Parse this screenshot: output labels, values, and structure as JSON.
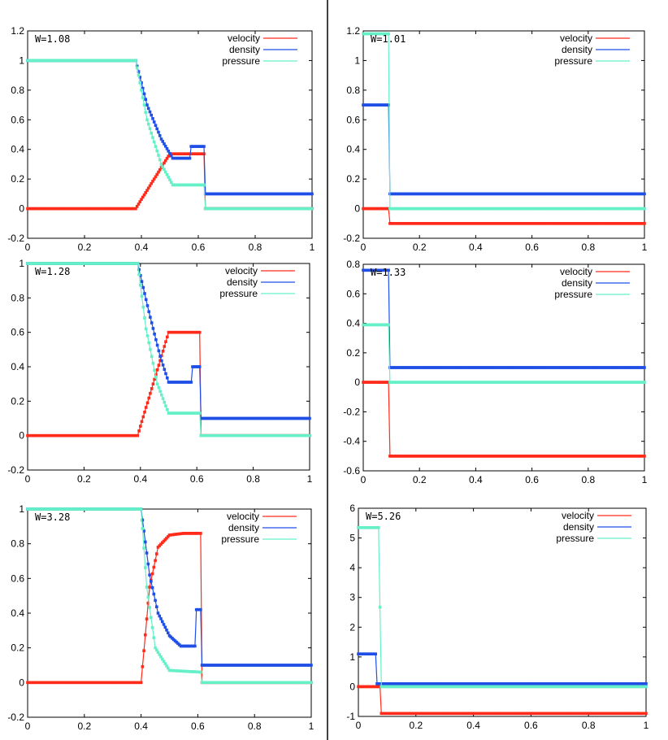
{
  "legend_labels": [
    "velocity",
    "density",
    "pressure"
  ],
  "colors": {
    "velocity": "#ff2a1a",
    "density": "#1f4fe6",
    "pressure": "#66f0c8",
    "frame": "#000000",
    "divider": "#000000"
  },
  "chart_data": [
    {
      "type": "line",
      "title": "W=1.08",
      "xlim": [
        0,
        1
      ],
      "ylim": [
        -0.2,
        1.2
      ],
      "xticks": [
        0,
        0.2,
        0.4,
        0.6,
        0.8,
        1
      ],
      "xtick_labels": [
        "0",
        "0.2",
        "0.4",
        "0.6",
        "0.8",
        "1"
      ],
      "yticks": [
        -0.2,
        0,
        0.2,
        0.4,
        0.6,
        0.8,
        1,
        1.2
      ],
      "ytick_labels": [
        "-0.2",
        "0",
        "0.2",
        "0.4",
        "0.6",
        "0.8",
        "1",
        "1.2"
      ],
      "series": [
        {
          "name": "velocity",
          "x": [
            0,
            0.38,
            0.5,
            0.62,
            0.625,
            1
          ],
          "values": [
            0,
            0,
            0.37,
            0.37,
            0,
            0
          ]
        },
        {
          "name": "density",
          "x": [
            0,
            0.38,
            0.42,
            0.47,
            0.51,
            0.57,
            0.575,
            0.62,
            0.625,
            1
          ],
          "values": [
            1,
            1,
            0.7,
            0.47,
            0.34,
            0.34,
            0.42,
            0.42,
            0.1,
            0.1
          ]
        },
        {
          "name": "pressure",
          "x": [
            0,
            0.38,
            0.42,
            0.47,
            0.51,
            0.62,
            0.625,
            1
          ],
          "values": [
            1,
            1,
            0.6,
            0.3,
            0.16,
            0.16,
            0,
            0
          ]
        }
      ]
    },
    {
      "type": "line",
      "title": "W=1.01",
      "xlim": [
        0,
        1
      ],
      "ylim": [
        -0.2,
        1.2
      ],
      "xticks": [
        0,
        0.2,
        0.4,
        0.6,
        0.8,
        1
      ],
      "xtick_labels": [
        "0",
        "0.2",
        "0.4",
        "0.6",
        "0.8",
        "1"
      ],
      "yticks": [
        -0.2,
        0,
        0.2,
        0.4,
        0.6,
        0.8,
        1,
        1.2
      ],
      "ytick_labels": [
        "-0.2",
        "0",
        "0.2",
        "0.4",
        "0.6",
        "0.8",
        "1",
        "1.2"
      ],
      "series": [
        {
          "name": "velocity",
          "x": [
            0,
            0.09,
            0.095,
            1
          ],
          "values": [
            0,
            0,
            -0.1,
            -0.1
          ]
        },
        {
          "name": "density",
          "x": [
            0,
            0.09,
            0.095,
            1
          ],
          "values": [
            0.7,
            0.7,
            0.1,
            0.1
          ]
        },
        {
          "name": "pressure",
          "x": [
            0,
            0.09,
            0.095,
            1
          ],
          "values": [
            1.18,
            1.18,
            0,
            0
          ]
        }
      ]
    },
    {
      "type": "line",
      "title": "W=1.28",
      "xlim": [
        0,
        1
      ],
      "ylim": [
        -0.2,
        1
      ],
      "xticks": [
        0,
        0.2,
        0.4,
        0.6,
        0.8,
        1
      ],
      "xtick_labels": [
        "0",
        "0.2",
        "0.4",
        "0.6",
        "0.8",
        "1"
      ],
      "yticks": [
        -0.2,
        0,
        0.2,
        0.4,
        0.6,
        0.8,
        1
      ],
      "ytick_labels": [
        "-0.2",
        "0",
        "0.2",
        "0.4",
        "0.6",
        "0.8",
        "1"
      ],
      "series": [
        {
          "name": "velocity",
          "x": [
            0,
            0.39,
            0.5,
            0.61,
            0.615,
            1
          ],
          "values": [
            0,
            0,
            0.6,
            0.6,
            0,
            0
          ]
        },
        {
          "name": "density",
          "x": [
            0,
            0.39,
            0.43,
            0.47,
            0.5,
            0.58,
            0.585,
            0.61,
            0.615,
            1
          ],
          "values": [
            1,
            1,
            0.72,
            0.46,
            0.31,
            0.31,
            0.4,
            0.4,
            0.1,
            0.1
          ]
        },
        {
          "name": "pressure",
          "x": [
            0,
            0.39,
            0.42,
            0.46,
            0.5,
            0.61,
            0.615,
            1
          ],
          "values": [
            1,
            1,
            0.62,
            0.3,
            0.13,
            0.13,
            0,
            0
          ]
        }
      ]
    },
    {
      "type": "line",
      "title": "W=1.33",
      "xlim": [
        0,
        1
      ],
      "ylim": [
        -0.6,
        0.8
      ],
      "xticks": [
        0,
        0.2,
        0.4,
        0.6,
        0.8,
        1
      ],
      "xtick_labels": [
        "0",
        "0.2",
        "0.4",
        "0.6",
        "0.8",
        "1"
      ],
      "yticks": [
        -0.6,
        -0.4,
        -0.2,
        0,
        0.2,
        0.4,
        0.6,
        0.8
      ],
      "ytick_labels": [
        "-0.6",
        "-0.4",
        "-0.2",
        "0",
        "0.2",
        "0.4",
        "0.6",
        "0.8"
      ],
      "series": [
        {
          "name": "velocity",
          "x": [
            0,
            0.09,
            0.095,
            1
          ],
          "values": [
            0,
            0,
            -0.5,
            -0.5
          ]
        },
        {
          "name": "density",
          "x": [
            0,
            0.09,
            0.095,
            1
          ],
          "values": [
            0.76,
            0.76,
            0.1,
            0.1
          ]
        },
        {
          "name": "pressure",
          "x": [
            0,
            0.09,
            0.095,
            1
          ],
          "values": [
            0.39,
            0.39,
            0,
            0
          ]
        }
      ]
    },
    {
      "type": "line",
      "title": "W=3.28",
      "xlim": [
        0,
        1
      ],
      "ylim": [
        -0.2,
        1
      ],
      "xticks": [
        0,
        0.2,
        0.4,
        0.6,
        0.8,
        1
      ],
      "xtick_labels": [
        "0",
        "0.2",
        "0.4",
        "0.6",
        "0.8",
        "1"
      ],
      "yticks": [
        -0.2,
        0,
        0.2,
        0.4,
        0.6,
        0.8,
        1
      ],
      "ytick_labels": [
        "-0.2",
        "0",
        "0.2",
        "0.4",
        "0.6",
        "0.8",
        "1"
      ],
      "series": [
        {
          "name": "velocity",
          "x": [
            0,
            0.4,
            0.43,
            0.46,
            0.5,
            0.55,
            0.6,
            0.61,
            0.615,
            1
          ],
          "values": [
            0,
            0,
            0.55,
            0.78,
            0.85,
            0.86,
            0.86,
            0.86,
            0,
            0
          ]
        },
        {
          "name": "density",
          "x": [
            0,
            0.4,
            0.43,
            0.46,
            0.5,
            0.54,
            0.59,
            0.595,
            0.61,
            0.615,
            1
          ],
          "values": [
            1,
            1,
            0.62,
            0.4,
            0.27,
            0.21,
            0.21,
            0.42,
            0.42,
            0.1,
            0.1
          ]
        },
        {
          "name": "pressure",
          "x": [
            0,
            0.4,
            0.42,
            0.45,
            0.5,
            0.61,
            0.615,
            1
          ],
          "values": [
            1,
            1,
            0.55,
            0.2,
            0.07,
            0.06,
            0,
            0
          ]
        }
      ]
    },
    {
      "type": "line",
      "title": "W=5.26",
      "xlim": [
        0,
        1
      ],
      "ylim": [
        -1,
        6
      ],
      "xticks": [
        0,
        0.2,
        0.4,
        0.6,
        0.8,
        1
      ],
      "xtick_labels": [
        "0",
        "0.2",
        "0.4",
        "0.6",
        "0.8",
        "1"
      ],
      "yticks": [
        -1,
        0,
        1,
        2,
        3,
        4,
        5,
        6
      ],
      "ytick_labels": [
        "-1",
        "0",
        "1",
        "2",
        "3",
        "4",
        "5",
        "6"
      ],
      "series": [
        {
          "name": "velocity",
          "x": [
            0,
            0.075,
            0.08,
            1
          ],
          "values": [
            0,
            0,
            -0.9,
            -0.9
          ]
        },
        {
          "name": "density",
          "x": [
            0,
            0.06,
            0.065,
            1
          ],
          "values": [
            1.1,
            1.1,
            0.1,
            0.1
          ]
        },
        {
          "name": "pressure",
          "x": [
            0,
            0.07,
            0.08,
            1
          ],
          "values": [
            5.35,
            5.35,
            0,
            0
          ]
        }
      ]
    }
  ]
}
